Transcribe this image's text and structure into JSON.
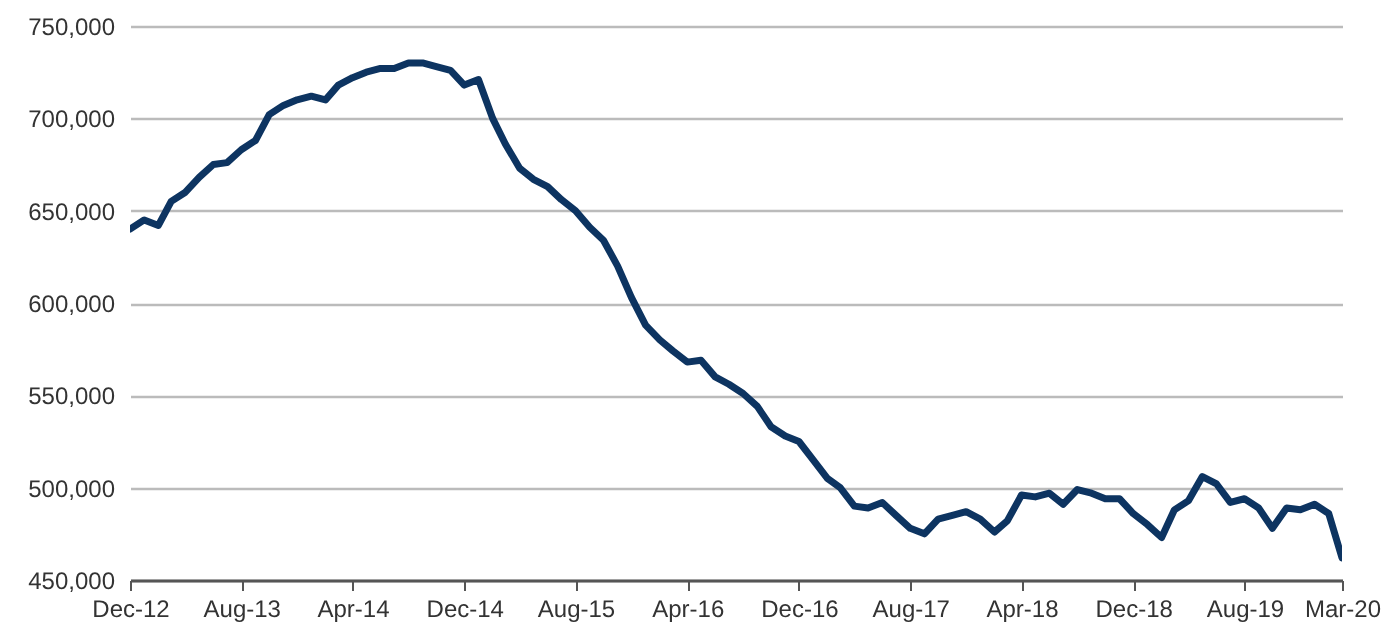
{
  "chart_data": {
    "type": "line",
    "x": [
      "2012-12",
      "2013-01",
      "2013-02",
      "2013-03",
      "2013-04",
      "2013-05",
      "2013-06",
      "2013-07",
      "2013-08",
      "2013-09",
      "2013-10",
      "2013-11",
      "2013-12",
      "2014-01",
      "2014-02",
      "2014-03",
      "2014-04",
      "2014-05",
      "2014-06",
      "2014-07",
      "2014-08",
      "2014-09",
      "2014-10",
      "2014-11",
      "2014-12",
      "2015-01",
      "2015-02",
      "2015-03",
      "2015-04",
      "2015-05",
      "2015-06",
      "2015-07",
      "2015-08",
      "2015-09",
      "2015-10",
      "2015-11",
      "2015-12",
      "2016-01",
      "2016-02",
      "2016-03",
      "2016-04",
      "2016-05",
      "2016-06",
      "2016-07",
      "2016-08",
      "2016-09",
      "2016-10",
      "2016-11",
      "2016-12",
      "2017-01",
      "2017-02",
      "2017-03",
      "2017-04",
      "2017-05",
      "2017-06",
      "2017-07",
      "2017-08",
      "2017-09",
      "2017-10",
      "2017-11",
      "2017-12",
      "2018-01",
      "2018-02",
      "2018-03",
      "2018-04",
      "2018-05",
      "2018-06",
      "2018-07",
      "2018-08",
      "2018-09",
      "2018-10",
      "2018-11",
      "2018-12",
      "2019-01",
      "2019-02",
      "2019-03",
      "2019-04",
      "2019-05",
      "2019-06",
      "2019-07",
      "2019-08",
      "2019-09",
      "2019-10",
      "2019-11",
      "2019-12",
      "2020-01",
      "2020-02",
      "2020-03"
    ],
    "series": [
      {
        "color": "#0d3461",
        "values": [
          640000,
          645000,
          642000,
          655000,
          660000,
          668000,
          675000,
          676000,
          683000,
          688000,
          702000,
          707000,
          710000,
          712000,
          710000,
          718000,
          722000,
          725000,
          727000,
          727000,
          730000,
          730000,
          728000,
          726000,
          718000,
          721000,
          700000,
          686000,
          673000,
          667000,
          663000,
          656000,
          650000,
          641000,
          634000,
          620000,
          603000,
          588000,
          580000,
          574000,
          568000,
          569000,
          560000,
          556000,
          551000,
          544000,
          533000,
          528000,
          525000,
          515000,
          505000,
          500000,
          490000,
          489000,
          492000,
          485000,
          478000,
          475000,
          483000,
          485000,
          487000,
          483000,
          476000,
          482000,
          496000,
          495000,
          497000,
          491000,
          499000,
          497000,
          494000,
          494000,
          486000,
          480000,
          473000,
          488000,
          493000,
          506000,
          502000,
          492000,
          494000,
          489000,
          478000,
          489000,
          488000,
          491000,
          486000,
          462000
        ]
      }
    ],
    "xlim": [
      "2012-12",
      "2020-03"
    ],
    "xticks": [
      {
        "value": "2012-12",
        "label": "Dec-12"
      },
      {
        "value": "2013-08",
        "label": "Aug-13"
      },
      {
        "value": "2014-04",
        "label": "Apr-14"
      },
      {
        "value": "2014-12",
        "label": "Dec-14"
      },
      {
        "value": "2015-08",
        "label": "Aug-15"
      },
      {
        "value": "2016-04",
        "label": "Apr-16"
      },
      {
        "value": "2016-12",
        "label": "Dec-16"
      },
      {
        "value": "2017-08",
        "label": "Aug-17"
      },
      {
        "value": "2018-04",
        "label": "Apr-18"
      },
      {
        "value": "2018-12",
        "label": "Dec-18"
      },
      {
        "value": "2019-08",
        "label": "Aug-19"
      },
      {
        "value": "2020-03",
        "label": "Mar-20"
      }
    ],
    "ylim": [
      450000,
      750000
    ],
    "yticks": [
      {
        "value": 450000,
        "label": "450,000"
      },
      {
        "value": 500000,
        "label": "500,000"
      },
      {
        "value": 550000,
        "label": "550,000"
      },
      {
        "value": 600000,
        "label": "600,000"
      },
      {
        "value": 650000,
        "label": "650,000"
      },
      {
        "value": 700000,
        "label": "700,000"
      },
      {
        "value": 750000,
        "label": "750,000"
      }
    ],
    "grid": "y"
  }
}
